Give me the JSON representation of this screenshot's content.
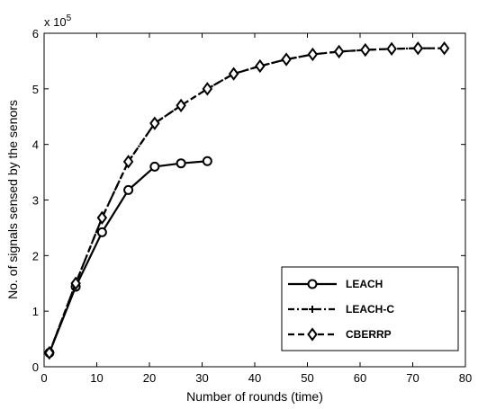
{
  "chart_data": {
    "type": "line",
    "title": "",
    "xlabel": "Number of rounds  (time)",
    "ylabel": "No. of signals sensed by the senors",
    "xlim": [
      0,
      80
    ],
    "ylim": [
      0,
      6
    ],
    "xticks": [
      "0",
      "10",
      "20",
      "30",
      "40",
      "50",
      "60",
      "70",
      "80"
    ],
    "yticks": [
      "0",
      "1",
      "2",
      "3",
      "4",
      "5",
      "6"
    ],
    "y_multiplier_base": "x 10",
    "y_multiplier_exp": "5",
    "grid": false,
    "legend_position": "bottom-right",
    "series": [
      {
        "name": "LEACH",
        "line_style": "solid",
        "marker": "circle",
        "color": "#000000",
        "x": [
          1,
          6,
          11,
          16,
          21,
          26,
          31
        ],
        "y": [
          0.25,
          1.44,
          2.42,
          3.18,
          3.6,
          3.66,
          3.7
        ]
      },
      {
        "name": "LEACH-C",
        "line_style": "dashdot",
        "marker": "plus",
        "color": "#000000",
        "x": [
          1,
          6,
          11,
          16,
          21,
          26,
          31,
          36,
          41,
          46,
          51,
          56,
          61,
          66,
          71,
          76
        ],
        "y": [
          0.25,
          1.5,
          2.68,
          3.69,
          4.38,
          4.7,
          5.0,
          5.27,
          5.41,
          5.53,
          5.62,
          5.67,
          5.7,
          5.72,
          5.73,
          5.73
        ]
      },
      {
        "name": "CBERRP",
        "line_style": "dashed",
        "marker": "diamond",
        "color": "#000000",
        "x": [
          1,
          6,
          11,
          16,
          21,
          26,
          31,
          36,
          41,
          46,
          51,
          56,
          61,
          66,
          71,
          76
        ],
        "y": [
          0.25,
          1.5,
          2.68,
          3.69,
          4.38,
          4.7,
          5.0,
          5.27,
          5.41,
          5.53,
          5.62,
          5.67,
          5.7,
          5.72,
          5.73,
          5.73
        ]
      }
    ]
  }
}
